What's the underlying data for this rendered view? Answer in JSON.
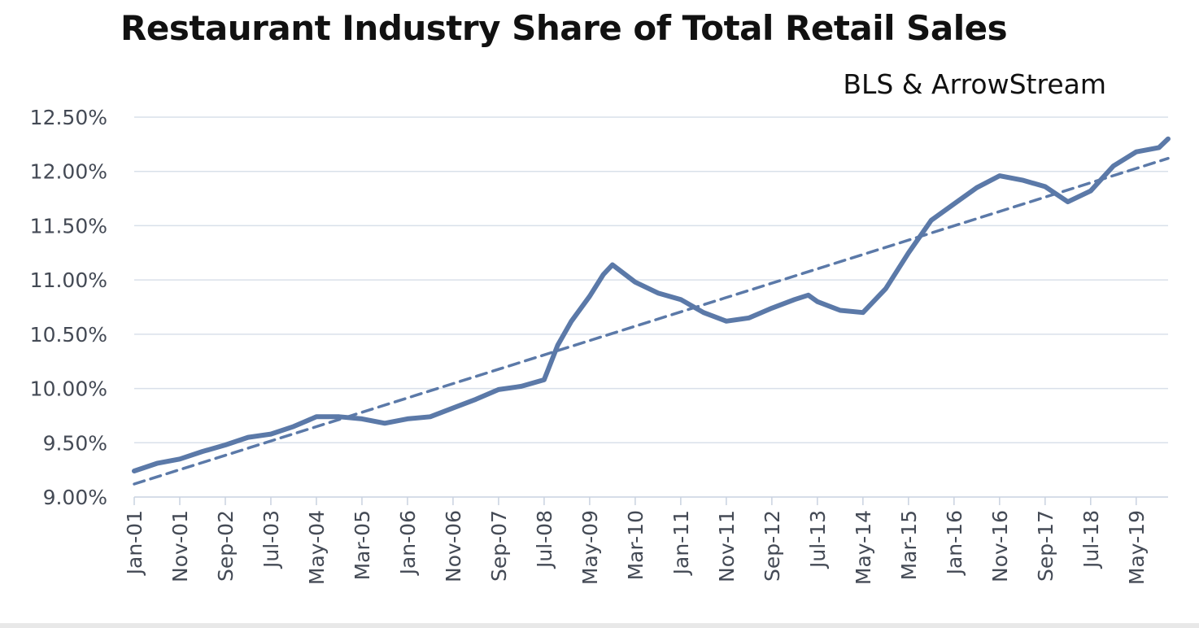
{
  "chart_data": {
    "type": "line",
    "title": "Restaurant Industry Share of Total Retail Sales",
    "subtitle": "BLS & ArrowStream",
    "xlabel": "",
    "ylabel": "",
    "ylim": [
      9.0,
      12.5
    ],
    "yticks": [
      "12.50%",
      "12.00%",
      "11.50%",
      "11.00%",
      "10.50%",
      "10.00%",
      "9.50%",
      "9.00%"
    ],
    "ytick_values": [
      12.5,
      12.0,
      11.5,
      11.0,
      10.5,
      10.0,
      9.5,
      9.0
    ],
    "xticks": [
      "Jan-01",
      "Nov-01",
      "Sep-02",
      "Jul-03",
      "May-04",
      "Mar-05",
      "Jan-06",
      "Nov-06",
      "Sep-07",
      "Jul-08",
      "May-09",
      "Mar-10",
      "Jan-11",
      "Nov-11",
      "Sep-12",
      "Jul-13",
      "May-14",
      "Mar-15",
      "Jan-16",
      "Nov-16",
      "Sep-17",
      "Jul-18",
      "May-19"
    ],
    "x_start": "Jan-01",
    "x_end": "Dec-19",
    "grid": true,
    "legend": "none",
    "series": [
      {
        "style": "solid",
        "color": "#5b79a8",
        "points": [
          [
            "Jan-01",
            9.24
          ],
          [
            "Jun-01",
            9.31
          ],
          [
            "Nov-01",
            9.35
          ],
          [
            "Apr-02",
            9.42
          ],
          [
            "Sep-02",
            9.48
          ],
          [
            "Feb-03",
            9.55
          ],
          [
            "Jul-03",
            9.58
          ],
          [
            "Dec-03",
            9.65
          ],
          [
            "May-04",
            9.74
          ],
          [
            "Oct-04",
            9.74
          ],
          [
            "Mar-05",
            9.72
          ],
          [
            "Aug-05",
            9.68
          ],
          [
            "Jan-06",
            9.72
          ],
          [
            "Jun-06",
            9.74
          ],
          [
            "Nov-06",
            9.82
          ],
          [
            "Apr-07",
            9.9
          ],
          [
            "Sep-07",
            9.99
          ],
          [
            "Feb-08",
            10.02
          ],
          [
            "Jul-08",
            10.08
          ],
          [
            "Oct-08",
            10.4
          ],
          [
            "Jan-09",
            10.62
          ],
          [
            "May-09",
            10.85
          ],
          [
            "Aug-09",
            11.05
          ],
          [
            "Oct-09",
            11.14
          ],
          [
            "Mar-10",
            10.98
          ],
          [
            "Aug-10",
            10.88
          ],
          [
            "Jan-11",
            10.82
          ],
          [
            "Jun-11",
            10.7
          ],
          [
            "Nov-11",
            10.62
          ],
          [
            "Apr-12",
            10.65
          ],
          [
            "Sep-12",
            10.74
          ],
          [
            "Feb-13",
            10.82
          ],
          [
            "May-13",
            10.86
          ],
          [
            "Jul-13",
            10.8
          ],
          [
            "Dec-13",
            10.72
          ],
          [
            "May-14",
            10.7
          ],
          [
            "Oct-14",
            10.92
          ],
          [
            "Mar-15",
            11.25
          ],
          [
            "Aug-15",
            11.55
          ],
          [
            "Jan-16",
            11.7
          ],
          [
            "Jun-16",
            11.85
          ],
          [
            "Nov-16",
            11.96
          ],
          [
            "Apr-17",
            11.92
          ],
          [
            "Sep-17",
            11.86
          ],
          [
            "Feb-18",
            11.72
          ],
          [
            "Jul-18",
            11.82
          ],
          [
            "Dec-18",
            12.05
          ],
          [
            "May-19",
            12.18
          ],
          [
            "Oct-19",
            12.22
          ],
          [
            "Dec-19",
            12.3
          ]
        ]
      },
      {
        "style": "dashed",
        "color": "#5b79a8",
        "points": [
          [
            "Jan-01",
            9.12
          ],
          [
            "Dec-19",
            12.12
          ]
        ]
      }
    ]
  }
}
